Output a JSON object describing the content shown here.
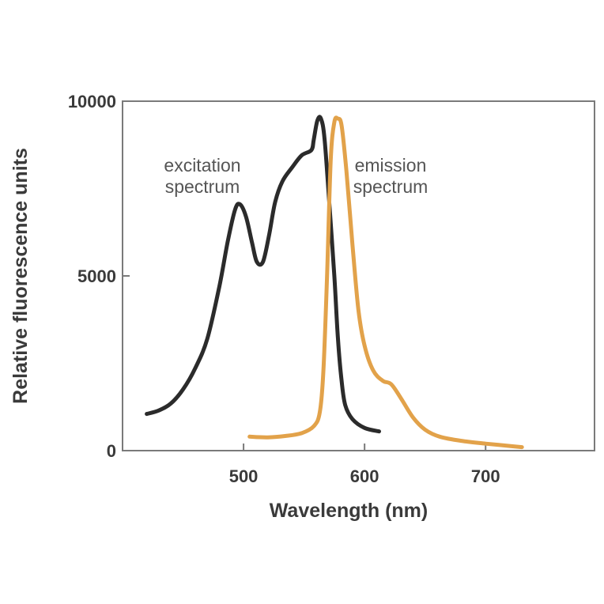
{
  "chart_data": {
    "type": "line",
    "title": "",
    "xlabel": "Wavelength (nm)",
    "ylabel": "Relative fluorescence units",
    "xlim": [
      400,
      790
    ],
    "ylim": [
      0,
      10000
    ],
    "x_ticks": [
      500,
      600,
      700
    ],
    "y_ticks": [
      0,
      5000,
      10000
    ],
    "x_tick_labels": [
      "500",
      "600",
      "700"
    ],
    "y_tick_labels": [
      "0",
      "5000",
      "10000"
    ],
    "grid": false,
    "legend": "none",
    "series": [
      {
        "color": "#2b2b2b",
        "points": [
          [
            420,
            1050
          ],
          [
            430,
            1150
          ],
          [
            440,
            1350
          ],
          [
            450,
            1750
          ],
          [
            460,
            2350
          ],
          [
            470,
            3200
          ],
          [
            480,
            4700
          ],
          [
            487,
            6000
          ],
          [
            493,
            6900
          ],
          [
            497,
            7050
          ],
          [
            502,
            6700
          ],
          [
            507,
            5950
          ],
          [
            511,
            5400
          ],
          [
            516,
            5400
          ],
          [
            521,
            6150
          ],
          [
            526,
            7100
          ],
          [
            532,
            7700
          ],
          [
            540,
            8100
          ],
          [
            548,
            8450
          ],
          [
            556,
            8600
          ],
          [
            558,
            8900
          ],
          [
            561,
            9450
          ],
          [
            564,
            9500
          ],
          [
            567,
            8900
          ],
          [
            571,
            7000
          ],
          [
            575,
            5000
          ],
          [
            578,
            3200
          ],
          [
            581,
            2000
          ],
          [
            584,
            1300
          ],
          [
            590,
            900
          ],
          [
            600,
            650
          ],
          [
            612,
            550
          ]
        ]
      },
      {
        "color": "#e2a24a",
        "points": [
          [
            505,
            400
          ],
          [
            520,
            380
          ],
          [
            535,
            420
          ],
          [
            548,
            500
          ],
          [
            558,
            700
          ],
          [
            563,
            1100
          ],
          [
            566,
            2300
          ],
          [
            569,
            5000
          ],
          [
            572,
            8300
          ],
          [
            575,
            9400
          ],
          [
            578,
            9500
          ],
          [
            581,
            9300
          ],
          [
            585,
            8000
          ],
          [
            590,
            5900
          ],
          [
            595,
            4000
          ],
          [
            600,
            3000
          ],
          [
            607,
            2300
          ],
          [
            615,
            2000
          ],
          [
            622,
            1900
          ],
          [
            630,
            1500
          ],
          [
            640,
            950
          ],
          [
            650,
            600
          ],
          [
            662,
            400
          ],
          [
            680,
            280
          ],
          [
            700,
            200
          ],
          [
            715,
            150
          ],
          [
            730,
            100
          ]
        ]
      }
    ],
    "annotations": [
      {
        "lines": [
          "excitation",
          "spectrum"
        ]
      },
      {
        "lines": [
          "emission",
          "spectrum"
        ]
      }
    ]
  }
}
